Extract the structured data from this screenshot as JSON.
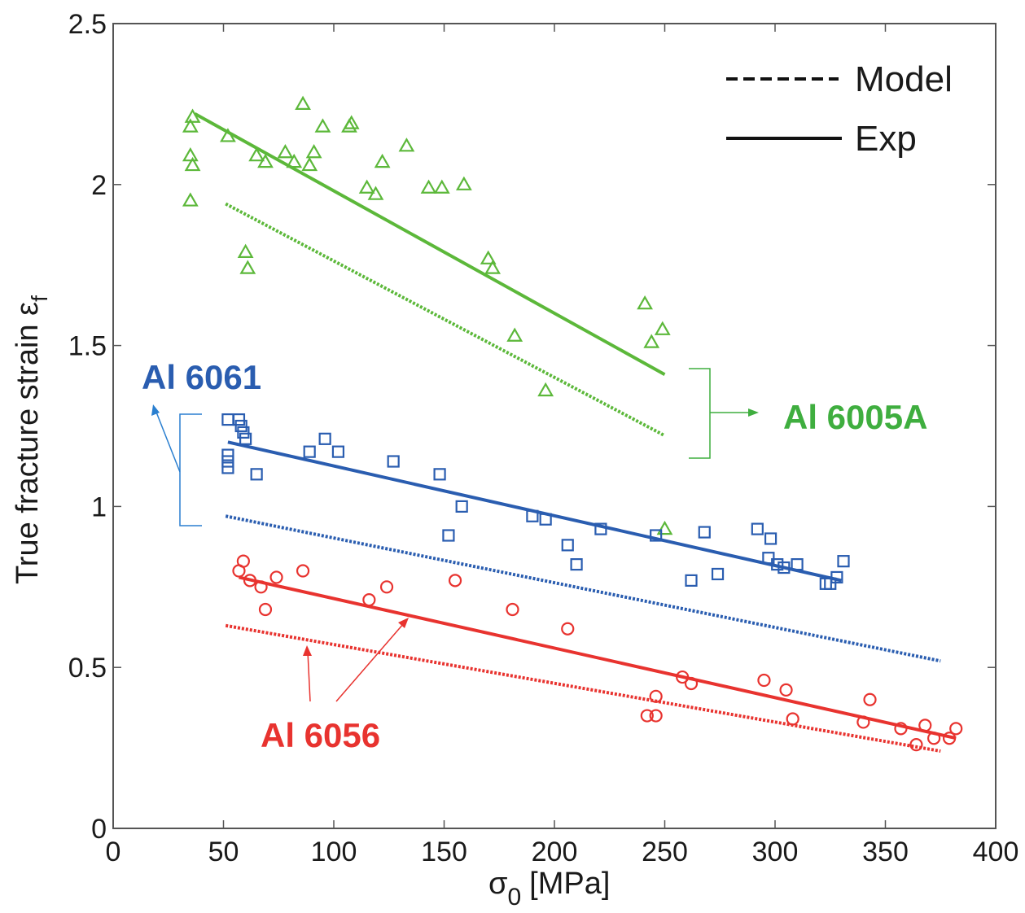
{
  "chart_data": {
    "type": "scatter",
    "xlabel": "σ",
    "xlabel_sub": "0",
    "xlabel_unit": "[MPa]",
    "ylabel": "True fracture strain ε",
    "ylabel_sub": "f",
    "xlim": [
      0,
      400
    ],
    "ylim": [
      0,
      2.5
    ],
    "x_ticks": [
      0,
      50,
      100,
      150,
      200,
      250,
      300,
      350,
      400
    ],
    "y_ticks": [
      0,
      0.5,
      1,
      1.5,
      2,
      2.5
    ],
    "x_tick_labels": [
      "0",
      "50",
      "100",
      "150",
      "200",
      "250",
      "300",
      "350",
      "400"
    ],
    "y_tick_labels": [
      "0",
      "0.5",
      "1",
      "1.5",
      "2",
      "2.5"
    ],
    "grid": false,
    "legend": {
      "placement": "top-right",
      "entries": [
        {
          "label": "Model",
          "style": "dashed"
        },
        {
          "label": "Exp",
          "style": "solid"
        }
      ]
    },
    "series": [
      {
        "name": "Al 6005A",
        "color": "#5cb83a",
        "marker": "triangle",
        "points": [
          [
            36,
            2.21
          ],
          [
            35,
            2.18
          ],
          [
            35,
            2.09
          ],
          [
            36,
            2.06
          ],
          [
            35,
            1.95
          ],
          [
            52,
            2.15
          ],
          [
            65,
            2.09
          ],
          [
            69,
            2.07
          ],
          [
            78,
            2.1
          ],
          [
            82,
            2.07
          ],
          [
            86,
            2.25
          ],
          [
            89,
            2.06
          ],
          [
            91,
            2.1
          ],
          [
            95,
            2.18
          ],
          [
            107,
            2.18
          ],
          [
            108,
            2.19
          ],
          [
            115,
            1.99
          ],
          [
            119,
            1.97
          ],
          [
            122,
            2.07
          ],
          [
            133,
            2.12
          ],
          [
            143,
            1.99
          ],
          [
            149,
            1.99
          ],
          [
            159,
            2.0
          ],
          [
            60,
            1.79
          ],
          [
            61,
            1.74
          ],
          [
            170,
            1.77
          ],
          [
            172,
            1.74
          ],
          [
            182,
            1.53
          ],
          [
            196,
            1.36
          ],
          [
            241,
            1.63
          ],
          [
            244,
            1.51
          ],
          [
            249,
            1.55
          ],
          [
            250,
            0.93
          ]
        ],
        "exp_fit": {
          "x": [
            37,
            250
          ],
          "y": [
            2.22,
            1.41
          ]
        },
        "model_fit": {
          "x": [
            51,
            250
          ],
          "y": [
            1.94,
            1.22
          ]
        }
      },
      {
        "name": "Al 6061",
        "color": "#2a5db0",
        "marker": "square",
        "points": [
          [
            52,
            1.27
          ],
          [
            52,
            1.16
          ],
          [
            52,
            1.14
          ],
          [
            52,
            1.12
          ],
          [
            57,
            1.27
          ],
          [
            58,
            1.25
          ],
          [
            59,
            1.23
          ],
          [
            60,
            1.21
          ],
          [
            65,
            1.1
          ],
          [
            89,
            1.17
          ],
          [
            96,
            1.21
          ],
          [
            102,
            1.17
          ],
          [
            127,
            1.14
          ],
          [
            148,
            1.1
          ],
          [
            152,
            0.91
          ],
          [
            158,
            1.0
          ],
          [
            190,
            0.97
          ],
          [
            196,
            0.96
          ],
          [
            206,
            0.88
          ],
          [
            210,
            0.82
          ],
          [
            221,
            0.93
          ],
          [
            246,
            0.91
          ],
          [
            262,
            0.77
          ],
          [
            268,
            0.92
          ],
          [
            274,
            0.79
          ],
          [
            292,
            0.93
          ],
          [
            297,
            0.84
          ],
          [
            298,
            0.9
          ],
          [
            301,
            0.82
          ],
          [
            304,
            0.81
          ],
          [
            310,
            0.82
          ],
          [
            323,
            0.76
          ],
          [
            325,
            0.76
          ],
          [
            328,
            0.78
          ],
          [
            331,
            0.83
          ]
        ],
        "exp_fit": {
          "x": [
            52,
            330
          ],
          "y": [
            1.2,
            0.77
          ]
        },
        "model_fit": {
          "x": [
            51,
            375
          ],
          "y": [
            0.97,
            0.52
          ]
        }
      },
      {
        "name": "Al 6056",
        "color": "#e8332f",
        "marker": "circle",
        "points": [
          [
            57,
            0.8
          ],
          [
            59,
            0.83
          ],
          [
            62,
            0.77
          ],
          [
            67,
            0.75
          ],
          [
            69,
            0.68
          ],
          [
            74,
            0.78
          ],
          [
            86,
            0.8
          ],
          [
            116,
            0.71
          ],
          [
            124,
            0.75
          ],
          [
            155,
            0.77
          ],
          [
            181,
            0.68
          ],
          [
            206,
            0.62
          ],
          [
            258,
            0.47
          ],
          [
            262,
            0.45
          ],
          [
            246,
            0.41
          ],
          [
            242,
            0.35
          ],
          [
            246,
            0.35
          ],
          [
            295,
            0.46
          ],
          [
            305,
            0.43
          ],
          [
            308,
            0.34
          ],
          [
            340,
            0.33
          ],
          [
            343,
            0.4
          ],
          [
            357,
            0.31
          ],
          [
            364,
            0.26
          ],
          [
            368,
            0.32
          ],
          [
            372,
            0.28
          ],
          [
            379,
            0.28
          ],
          [
            382,
            0.31
          ]
        ],
        "exp_fit": {
          "x": [
            57,
            382
          ],
          "y": [
            0.78,
            0.28
          ]
        },
        "model_fit": {
          "x": [
            51,
            375
          ],
          "y": [
            0.63,
            0.24
          ]
        }
      }
    ],
    "annotations": [
      {
        "text": "Al 6061",
        "color": "#2a5db0"
      },
      {
        "text": "Al 6005A",
        "color": "#3fae3f"
      },
      {
        "text": "Al 6056",
        "color": "#e8332f"
      }
    ]
  }
}
